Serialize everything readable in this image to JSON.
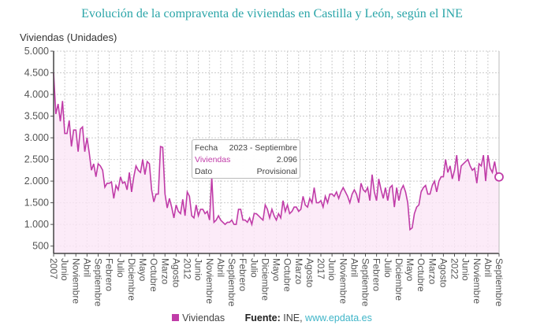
{
  "chart_data": {
    "type": "line",
    "title": "Evolución de la compraventa de viviendas en Castilla y León, según el INE",
    "ylabel": "Viviendas (Unidades)",
    "xlabel": "",
    "ylim": [
      330,
      5000
    ],
    "yticks": [
      500,
      1000,
      1500,
      2000,
      2500,
      3000,
      3500,
      4000,
      4500,
      5000
    ],
    "ytick_labels": [
      "500",
      "1.000",
      "1.500",
      "2.000",
      "2.500",
      "3.000",
      "3.500",
      "4.000",
      "4.500",
      "5.000"
    ],
    "x_start": "2007-01",
    "x_end": "2023-09",
    "xtick_labels": [
      "2007",
      "Junio",
      "Noviembre",
      "Abril",
      "Septiembre",
      "Febrero",
      "Julio",
      "Diciembre",
      "Mayo",
      "Octubre",
      "Marzo",
      "Agosto",
      "2012",
      "Junio",
      "Noviembre",
      "Abril",
      "Septiembre",
      "Febrero",
      "Julio",
      "Diciembre",
      "Mayo",
      "Octubre",
      "Marzo",
      "Agosto",
      "2017",
      "Junio",
      "Noviembre",
      "Abril",
      "Septiembre",
      "Febrero",
      "Julio",
      "Diciembre",
      "Mayo",
      "Octubre",
      "Marzo",
      "Agosto",
      "2022",
      "Junio",
      "Noviembre",
      "Abril",
      "Septiembre"
    ],
    "grid": true,
    "legend_position": "bottom",
    "colors": {
      "line": "#c03ca8",
      "fill": "#fbe6f6",
      "title": "#2aa5a8"
    },
    "series": [
      {
        "name": "Viviendas",
        "values": [
          4500,
          3550,
          3780,
          3380,
          3850,
          3100,
          3100,
          3400,
          2800,
          3180,
          3180,
          2680,
          3200,
          3250,
          2680,
          3000,
          2650,
          2250,
          2400,
          2100,
          2400,
          2350,
          2250,
          1860,
          1950,
          1950,
          1980,
          1600,
          1900,
          1800,
          2100,
          1950,
          1980,
          1800,
          2200,
          1750,
          2100,
          2350,
          2250,
          2200,
          2500,
          2150,
          2450,
          2400,
          1800,
          1520,
          1700,
          1700,
          2800,
          2780,
          1700,
          1380,
          1600,
          1400,
          1150,
          1450,
          1300,
          1250,
          1580,
          1200,
          1750,
          1650,
          1200,
          1150,
          1450,
          1200,
          1350,
          1350,
          1250,
          1300,
          1100,
          2100,
          1050,
          1100,
          1200,
          1100,
          1050,
          1000,
          1050,
          1050,
          1100,
          1000,
          1000,
          1350,
          1350,
          1100,
          1100,
          1050,
          1150,
          1000,
          1250,
          1250,
          1200,
          1150,
          1100,
          1450,
          1350,
          1150,
          1350,
          1200,
          1100,
          1250,
          1150,
          1550,
          1300,
          1450,
          1250,
          1300,
          1400,
          1400,
          1300,
          1350,
          1650,
          1450,
          1400,
          1600,
          1500,
          1850,
          1500,
          1500,
          1550,
          1400,
          1650,
          1500,
          1700,
          1700,
          1650,
          1750,
          1600,
          1750,
          1850,
          1750,
          1650,
          1500,
          1700,
          1800,
          1700,
          1500,
          1950,
          1800,
          1750,
          1850,
          1550,
          2150,
          1750,
          1550,
          2050,
          1800,
          1600,
          1850,
          1550,
          1850,
          1900,
          1400,
          1850,
          1550,
          1800,
          1900,
          1750,
          1500,
          880,
          920,
          1250,
          1400,
          1450,
          1750,
          1850,
          1900,
          1700,
          1700,
          1900,
          2000,
          1750,
          2000,
          2100,
          2100,
          2500,
          2200,
          2350,
          2050,
          2250,
          2600,
          2000,
          2350,
          2400,
          2450,
          2500,
          2350,
          2250,
          2300,
          1950,
          2400,
          2350,
          2600,
          2000,
          2600,
          2300,
          2200,
          2450,
          2150,
          2096
        ]
      }
    ],
    "tooltip": {
      "fecha_label": "Fecha",
      "fecha_value": "2023 - Septiembre",
      "series_label": "Viviendas",
      "series_value": "2.096",
      "dato_label": "Dato",
      "dato_value": "Provisional"
    },
    "legend": {
      "series": "Viviendas"
    },
    "source": {
      "label": "Fuente:",
      "text": "INE,",
      "link": "www.epdata.es"
    }
  }
}
